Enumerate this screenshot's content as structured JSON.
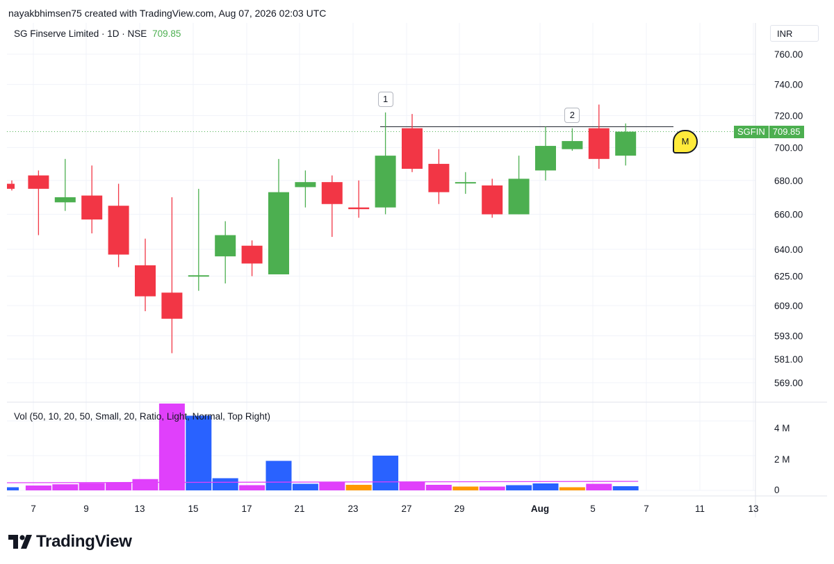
{
  "header": {
    "attribution": "nayakbhimsen75 created with TradingView.com, Aug 07, 2026 02:03 UTC"
  },
  "legend": {
    "symbol_line": "SG Finserve Limited · 1D · NSE",
    "last_price": "709.85"
  },
  "currency": "INR",
  "ticker_tag": {
    "symbol": "SGFIN",
    "price": "709.85"
  },
  "volume_legend": "Vol (50, 10, 20, 50, Small, 20, Ratio, Light, Normal, Top Right)",
  "annotations": [
    {
      "label": "1",
      "candle_index": 14
    },
    {
      "label": "2",
      "candle_index": 21
    }
  ],
  "flag_badge": "M",
  "logo_text": "TradingView",
  "colors": {
    "up": "#4caf50",
    "down": "#f23645",
    "volume_up": "#2962ff",
    "volume_down": "#e040fb",
    "volume_orange": "#ff9800",
    "volume_ma": "#e040fb",
    "grid": "#f0f3fa",
    "last_price_line": "#4caf50",
    "resistance_line": "#131722"
  },
  "chart_data": {
    "type": "candlestick",
    "price_axis": {
      "scale": "log",
      "ticks": [
        "760.00",
        "740.00",
        "720.00",
        "700.00",
        "680.00",
        "660.00",
        "640.00",
        "625.00",
        "609.00",
        "593.00",
        "581.00",
        "569.00"
      ]
    },
    "x_axis": {
      "ticks": [
        "7",
        "9",
        "13",
        "15",
        "17",
        "21",
        "23",
        "27",
        "29",
        "Aug",
        "5",
        "7",
        "11",
        "13"
      ]
    },
    "last_price": 709.85,
    "resistance_level": 713,
    "candles": [
      {
        "o": 678,
        "h": 680,
        "l": 674,
        "c": 675
      },
      {
        "o": 683,
        "h": 686,
        "l": 648,
        "c": 675
      },
      {
        "o": 667,
        "h": 693,
        "l": 662,
        "c": 670
      },
      {
        "o": 671,
        "h": 689,
        "l": 649,
        "c": 657
      },
      {
        "o": 665,
        "h": 678,
        "l": 630,
        "c": 637
      },
      {
        "o": 631,
        "h": 646,
        "l": 606,
        "c": 614
      },
      {
        "o": 616,
        "h": 670,
        "l": 584,
        "c": 602
      },
      {
        "o": 625,
        "h": 675,
        "l": 617,
        "c": 625.5
      },
      {
        "o": 636,
        "h": 656,
        "l": 621,
        "c": 648
      },
      {
        "o": 642,
        "h": 645,
        "l": 625,
        "c": 632
      },
      {
        "o": 626,
        "h": 693,
        "l": 626,
        "c": 673
      },
      {
        "o": 676,
        "h": 686,
        "l": 664,
        "c": 679
      },
      {
        "o": 679,
        "h": 683,
        "l": 647,
        "c": 666
      },
      {
        "o": 664,
        "h": 680,
        "l": 658,
        "c": 663
      },
      {
        "o": 664,
        "h": 722,
        "l": 660,
        "c": 695
      },
      {
        "o": 712,
        "h": 721,
        "l": 685,
        "c": 687
      },
      {
        "o": 690,
        "h": 699,
        "l": 666,
        "c": 673
      },
      {
        "o": 679,
        "h": 685,
        "l": 672,
        "c": 679
      },
      {
        "o": 677,
        "h": 681,
        "l": 658,
        "c": 660
      },
      {
        "o": 660,
        "h": 695,
        "l": 660,
        "c": 681
      },
      {
        "o": 686,
        "h": 713,
        "l": 680,
        "c": 701
      },
      {
        "o": 699,
        "h": 712,
        "l": 698,
        "c": 704
      },
      {
        "o": 712,
        "h": 727,
        "l": 687,
        "c": 693
      },
      {
        "o": 695,
        "h": 715,
        "l": 689,
        "c": 709.85
      }
    ],
    "volume_axis": {
      "ticks": [
        "4 M",
        "2 M",
        "0"
      ],
      "max": 4800000
    },
    "volume": [
      {
        "v": 180000,
        "color": "up"
      },
      {
        "v": 280000,
        "color": "down"
      },
      {
        "v": 350000,
        "color": "down"
      },
      {
        "v": 420000,
        "color": "down"
      },
      {
        "v": 450000,
        "color": "down"
      },
      {
        "v": 650000,
        "color": "down"
      },
      {
        "v": 5000000,
        "color": "down"
      },
      {
        "v": 4300000,
        "color": "up"
      },
      {
        "v": 700000,
        "color": "up"
      },
      {
        "v": 300000,
        "color": "down"
      },
      {
        "v": 1700000,
        "color": "up"
      },
      {
        "v": 380000,
        "color": "up"
      },
      {
        "v": 480000,
        "color": "down"
      },
      {
        "v": 320000,
        "color": "orange"
      },
      {
        "v": 2000000,
        "color": "up"
      },
      {
        "v": 480000,
        "color": "down"
      },
      {
        "v": 320000,
        "color": "down"
      },
      {
        "v": 220000,
        "color": "orange"
      },
      {
        "v": 220000,
        "color": "down"
      },
      {
        "v": 300000,
        "color": "up"
      },
      {
        "v": 400000,
        "color": "up"
      },
      {
        "v": 180000,
        "color": "orange"
      },
      {
        "v": 380000,
        "color": "down"
      },
      {
        "v": 240000,
        "color": "up"
      }
    ],
    "volume_ma": 520000
  }
}
